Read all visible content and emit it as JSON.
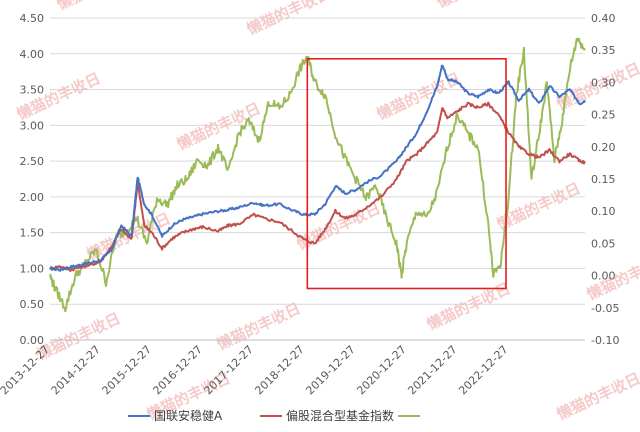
{
  "chart_data": {
    "type": "line",
    "title": "",
    "xlabel": "",
    "ylabel": "",
    "x_ticks": [
      "2013-12-27",
      "2014-12-27",
      "2015-12-27",
      "2016-12-27",
      "2017-12-27",
      "2018-12-27",
      "2019-12-27",
      "2020-12-27",
      "2021-12-27",
      "2022-12-27"
    ],
    "y_left": {
      "min": 0,
      "max": 4.5,
      "ticks": [
        "0.00",
        "0.50",
        "1.00",
        "1.50",
        "2.00",
        "2.50",
        "3.00",
        "3.50",
        "4.00",
        "4.50"
      ]
    },
    "y_right": {
      "min": -0.1,
      "max": 0.4,
      "ticks": [
        "-0.10",
        "-0.05",
        "0.00",
        "0.05",
        "0.10",
        "0.15",
        "0.20",
        "0.25",
        "0.30",
        "0.35",
        "0.40"
      ]
    },
    "series": [
      {
        "name": "国联安稳健A",
        "axis": "left",
        "color": "#4472C4",
        "points": [
          [
            0,
            1.0
          ],
          [
            0.2,
            0.98
          ],
          [
            0.4,
            1.02
          ],
          [
            0.6,
            1.05
          ],
          [
            0.8,
            1.08
          ],
          [
            1.0,
            1.12
          ],
          [
            1.2,
            1.25
          ],
          [
            1.4,
            1.6
          ],
          [
            1.6,
            1.45
          ],
          [
            1.72,
            2.28
          ],
          [
            1.85,
            1.9
          ],
          [
            2.0,
            1.75
          ],
          [
            2.2,
            1.45
          ],
          [
            2.4,
            1.6
          ],
          [
            2.6,
            1.68
          ],
          [
            2.8,
            1.72
          ],
          [
            3.0,
            1.76
          ],
          [
            3.3,
            1.8
          ],
          [
            3.5,
            1.82
          ],
          [
            3.7,
            1.85
          ],
          [
            4.0,
            1.92
          ],
          [
            4.2,
            1.88
          ],
          [
            4.5,
            1.9
          ],
          [
            4.8,
            1.8
          ],
          [
            5.0,
            1.75
          ],
          [
            5.2,
            1.76
          ],
          [
            5.4,
            1.9
          ],
          [
            5.6,
            2.15
          ],
          [
            5.8,
            2.05
          ],
          [
            6.0,
            2.1
          ],
          [
            6.2,
            2.2
          ],
          [
            6.5,
            2.3
          ],
          [
            6.8,
            2.5
          ],
          [
            7.0,
            2.7
          ],
          [
            7.2,
            2.9
          ],
          [
            7.4,
            3.2
          ],
          [
            7.6,
            3.55
          ],
          [
            7.7,
            3.85
          ],
          [
            7.8,
            3.65
          ],
          [
            8.0,
            3.6
          ],
          [
            8.2,
            3.45
          ],
          [
            8.4,
            3.4
          ],
          [
            8.6,
            3.5
          ],
          [
            8.8,
            3.45
          ],
          [
            9.0,
            3.6
          ],
          [
            9.2,
            3.35
          ],
          [
            9.4,
            3.5
          ],
          [
            9.6,
            3.3
          ],
          [
            9.8,
            3.55
          ],
          [
            10.0,
            3.4
          ],
          [
            10.2,
            3.5
          ],
          [
            10.4,
            3.3
          ],
          [
            10.5,
            3.35
          ]
        ]
      },
      {
        "name": "偏股混合型基金指数",
        "axis": "left",
        "color": "#C0504D",
        "points": [
          [
            0,
            1.0
          ],
          [
            0.2,
            1.03
          ],
          [
            0.4,
            0.98
          ],
          [
            0.6,
            1.02
          ],
          [
            0.8,
            1.05
          ],
          [
            1.0,
            1.1
          ],
          [
            1.2,
            1.3
          ],
          [
            1.4,
            1.55
          ],
          [
            1.6,
            1.4
          ],
          [
            1.72,
            2.2
          ],
          [
            1.85,
            1.6
          ],
          [
            2.0,
            1.5
          ],
          [
            2.2,
            1.28
          ],
          [
            2.4,
            1.42
          ],
          [
            2.6,
            1.5
          ],
          [
            2.8,
            1.55
          ],
          [
            3.0,
            1.58
          ],
          [
            3.3,
            1.52
          ],
          [
            3.5,
            1.6
          ],
          [
            3.7,
            1.62
          ],
          [
            4.0,
            1.75
          ],
          [
            4.2,
            1.7
          ],
          [
            4.5,
            1.65
          ],
          [
            4.8,
            1.5
          ],
          [
            5.0,
            1.4
          ],
          [
            5.2,
            1.35
          ],
          [
            5.4,
            1.55
          ],
          [
            5.6,
            1.8
          ],
          [
            5.8,
            1.7
          ],
          [
            6.0,
            1.75
          ],
          [
            6.2,
            1.85
          ],
          [
            6.5,
            2.0
          ],
          [
            6.8,
            2.25
          ],
          [
            7.0,
            2.5
          ],
          [
            7.2,
            2.6
          ],
          [
            7.4,
            2.75
          ],
          [
            7.6,
            2.9
          ],
          [
            7.7,
            3.25
          ],
          [
            7.8,
            3.1
          ],
          [
            8.0,
            3.2
          ],
          [
            8.2,
            3.3
          ],
          [
            8.4,
            3.25
          ],
          [
            8.6,
            3.3
          ],
          [
            8.8,
            3.15
          ],
          [
            9.0,
            2.9
          ],
          [
            9.2,
            2.7
          ],
          [
            9.4,
            2.6
          ],
          [
            9.6,
            2.55
          ],
          [
            9.8,
            2.65
          ],
          [
            10.0,
            2.5
          ],
          [
            10.2,
            2.6
          ],
          [
            10.4,
            2.5
          ],
          [
            10.5,
            2.48
          ]
        ]
      },
      {
        "name": "",
        "axis": "right",
        "color": "#9BBB59",
        "points": [
          [
            0,
            0.0
          ],
          [
            0.1,
            -0.02
          ],
          [
            0.3,
            -0.05
          ],
          [
            0.5,
            0.0
          ],
          [
            0.7,
            0.02
          ],
          [
            0.9,
            0.04
          ],
          [
            1.1,
            -0.01
          ],
          [
            1.3,
            0.06
          ],
          [
            1.5,
            0.07
          ],
          [
            1.7,
            0.09
          ],
          [
            1.9,
            0.05
          ],
          [
            2.1,
            0.12
          ],
          [
            2.3,
            0.11
          ],
          [
            2.5,
            0.14
          ],
          [
            2.7,
            0.15
          ],
          [
            2.9,
            0.18
          ],
          [
            3.1,
            0.17
          ],
          [
            3.3,
            0.2
          ],
          [
            3.5,
            0.16
          ],
          [
            3.7,
            0.22
          ],
          [
            3.9,
            0.24
          ],
          [
            4.1,
            0.21
          ],
          [
            4.3,
            0.27
          ],
          [
            4.5,
            0.26
          ],
          [
            4.7,
            0.28
          ],
          [
            4.9,
            0.32
          ],
          [
            5.05,
            0.34
          ],
          [
            5.2,
            0.3
          ],
          [
            5.4,
            0.28
          ],
          [
            5.6,
            0.22
          ],
          [
            5.8,
            0.18
          ],
          [
            6.0,
            0.15
          ],
          [
            6.2,
            0.12
          ],
          [
            6.4,
            0.14
          ],
          [
            6.6,
            0.09
          ],
          [
            6.8,
            0.05
          ],
          [
            6.9,
            0.0
          ],
          [
            7.0,
            0.05
          ],
          [
            7.2,
            0.1
          ],
          [
            7.4,
            0.09
          ],
          [
            7.6,
            0.13
          ],
          [
            7.8,
            0.2
          ],
          [
            8.0,
            0.25
          ],
          [
            8.2,
            0.22
          ],
          [
            8.4,
            0.2
          ],
          [
            8.6,
            0.08
          ],
          [
            8.7,
            0.0
          ],
          [
            8.85,
            0.02
          ],
          [
            9.0,
            0.12
          ],
          [
            9.15,
            0.28
          ],
          [
            9.3,
            0.35
          ],
          [
            9.45,
            0.15
          ],
          [
            9.6,
            0.22
          ],
          [
            9.75,
            0.3
          ],
          [
            9.9,
            0.18
          ],
          [
            10.05,
            0.24
          ],
          [
            10.2,
            0.32
          ],
          [
            10.35,
            0.37
          ],
          [
            10.5,
            0.35
          ]
        ]
      }
    ],
    "legend": {
      "position": "bottom",
      "entries": [
        "国联安稳健A",
        "偏股混合型基金指数",
        ""
      ]
    },
    "highlight_box": {
      "color": "#E02020",
      "x_from": 5.05,
      "x_to": 8.95,
      "y_from": 0.72,
      "y_to": 3.93
    },
    "watermark": "懒猫的丰收日",
    "grid": true
  }
}
